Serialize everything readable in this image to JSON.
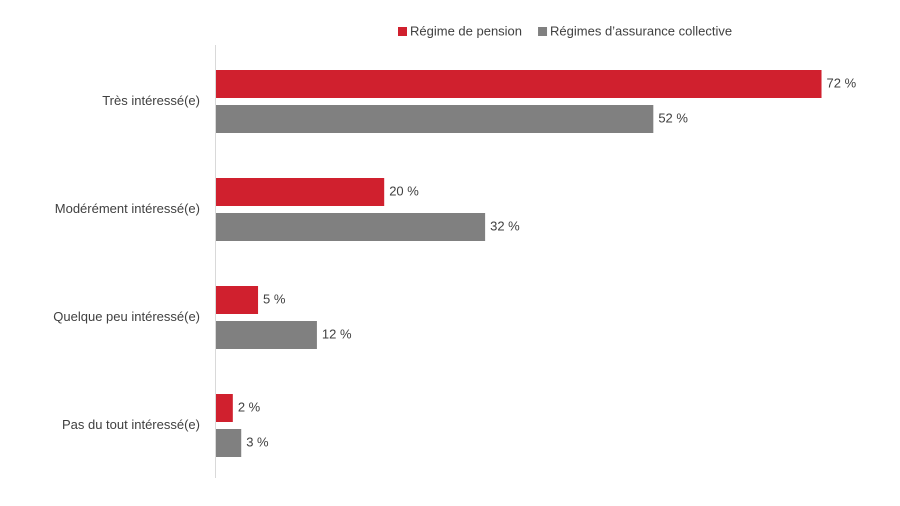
{
  "chart_data": {
    "type": "hbar",
    "categories": [
      "Très intéressé(e)",
      "Modérément intéressé(e)",
      "Quelque peu intéressé(e)",
      "Pas du tout intéressé(e)"
    ],
    "series": [
      {
        "name": "Régime de pension",
        "color": "#d0202e",
        "values": [
          72,
          20,
          5,
          2
        ],
        "value_labels": [
          "72 %",
          "20 %",
          "5 %",
          "2 %"
        ]
      },
      {
        "name": "Régimes d’assurance collective",
        "color": "#808080",
        "values": [
          52,
          32,
          12,
          3
        ],
        "value_labels": [
          "52 %",
          "32 %",
          "12 %",
          "3 %"
        ]
      }
    ],
    "legend": "top"
  }
}
